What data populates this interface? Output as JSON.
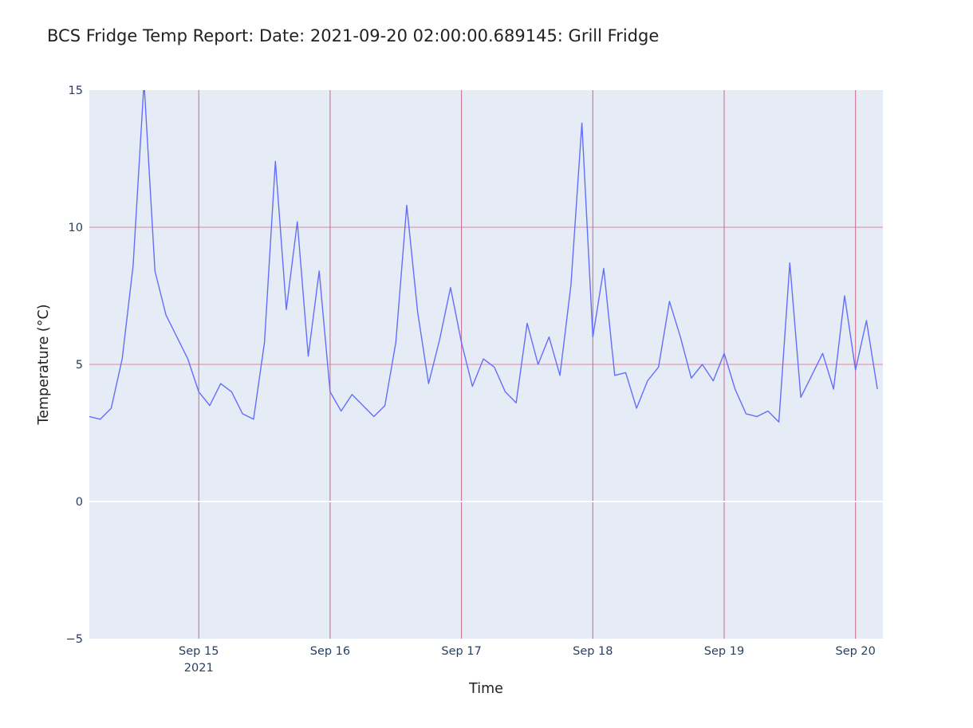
{
  "chart_data": {
    "type": "line",
    "title": "BCS Fridge Temp Report: Date: 2021-09-20 02:00:00.689145: Grill Fridge",
    "xlabel": "Time",
    "ylabel": "Temperature (°C)",
    "xlim": [
      "2021-09-14 04:00",
      "2021-09-20 05:00"
    ],
    "ylim": [
      -5,
      15
    ],
    "y_ticks": [
      -5,
      0,
      5,
      10,
      15
    ],
    "x_ticks": [
      {
        "value": "2021-09-15 00:00",
        "label": "Sep 15",
        "sublabel": "2021"
      },
      {
        "value": "2021-09-16 00:00",
        "label": "Sep 16"
      },
      {
        "value": "2021-09-17 00:00",
        "label": "Sep 17"
      },
      {
        "value": "2021-09-18 00:00",
        "label": "Sep 18"
      },
      {
        "value": "2021-09-19 00:00",
        "label": "Sep 19"
      },
      {
        "value": "2021-09-20 00:00",
        "label": "Sep 20"
      }
    ],
    "threshold_lines": [
      5,
      10
    ],
    "grid": true,
    "colors": {
      "line": "#636efa",
      "plot_bg": "#e5ecf6",
      "grid": "#ffffff",
      "threshold": "#e0879e",
      "day_marker": "#cc6688",
      "tick_text": "#2a3f5f",
      "title_text": "#222222"
    },
    "series": [
      {
        "x": [
          "2021-09-14 04:00",
          "2021-09-14 06:00",
          "2021-09-14 08:00",
          "2021-09-14 10:00",
          "2021-09-14 12:00",
          "2021-09-14 14:00",
          "2021-09-14 16:00",
          "2021-09-14 18:00",
          "2021-09-14 20:00",
          "2021-09-14 22:00",
          "2021-09-15 00:00",
          "2021-09-15 02:00",
          "2021-09-15 04:00",
          "2021-09-15 06:00",
          "2021-09-15 08:00",
          "2021-09-15 10:00",
          "2021-09-15 12:00",
          "2021-09-15 14:00",
          "2021-09-15 16:00",
          "2021-09-15 18:00",
          "2021-09-15 20:00",
          "2021-09-15 22:00",
          "2021-09-16 00:00",
          "2021-09-16 02:00",
          "2021-09-16 04:00",
          "2021-09-16 06:00",
          "2021-09-16 08:00",
          "2021-09-16 10:00",
          "2021-09-16 12:00",
          "2021-09-16 14:00",
          "2021-09-16 16:00",
          "2021-09-16 18:00",
          "2021-09-16 20:00",
          "2021-09-16 22:00",
          "2021-09-17 00:00",
          "2021-09-17 02:00",
          "2021-09-17 04:00",
          "2021-09-17 06:00",
          "2021-09-17 08:00",
          "2021-09-17 10:00",
          "2021-09-17 12:00",
          "2021-09-17 14:00",
          "2021-09-17 16:00",
          "2021-09-17 18:00",
          "2021-09-17 20:00",
          "2021-09-17 22:00",
          "2021-09-18 00:00",
          "2021-09-18 02:00",
          "2021-09-18 04:00",
          "2021-09-18 06:00",
          "2021-09-18 08:00",
          "2021-09-18 10:00",
          "2021-09-18 12:00",
          "2021-09-18 14:00",
          "2021-09-18 16:00",
          "2021-09-18 18:00",
          "2021-09-18 20:00",
          "2021-09-18 22:00",
          "2021-09-19 00:00",
          "2021-09-19 02:00",
          "2021-09-19 04:00",
          "2021-09-19 06:00",
          "2021-09-19 08:00",
          "2021-09-19 10:00",
          "2021-09-19 12:00",
          "2021-09-19 14:00",
          "2021-09-19 16:00",
          "2021-09-19 18:00",
          "2021-09-19 20:00",
          "2021-09-19 22:00",
          "2021-09-20 00:00",
          "2021-09-20 02:00",
          "2021-09-20 04:00"
        ],
        "y": [
          3.1,
          3.0,
          3.4,
          5.2,
          8.6,
          15.3,
          8.4,
          6.8,
          6.0,
          5.2,
          4.0,
          3.5,
          4.3,
          4.0,
          3.2,
          3.0,
          5.8,
          12.4,
          7.0,
          10.2,
          5.3,
          8.4,
          4.0,
          3.3,
          3.9,
          3.5,
          3.1,
          3.5,
          5.8,
          10.8,
          6.9,
          4.3,
          5.9,
          7.8,
          5.8,
          4.2,
          5.2,
          4.9,
          4.0,
          3.6,
          6.5,
          5.0,
          6.0,
          4.6,
          7.9,
          13.8,
          6.0,
          8.5,
          4.6,
          4.7,
          3.4,
          4.4,
          4.9,
          7.3,
          6.0,
          4.5,
          5.0,
          4.4,
          5.4,
          4.1,
          3.2,
          3.1,
          3.3,
          2.9,
          8.7,
          3.8,
          4.6,
          5.4,
          4.1,
          7.5,
          4.8,
          6.6,
          4.1
        ]
      }
    ]
  }
}
